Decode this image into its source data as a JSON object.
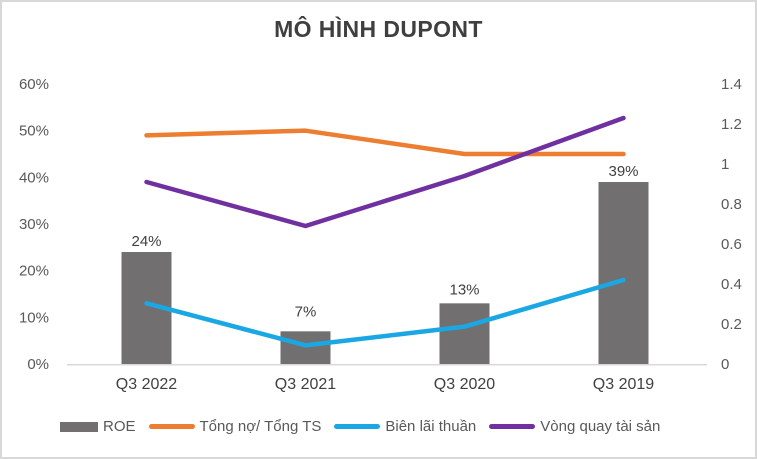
{
  "title": "MÔ HÌNH DUPONT",
  "chart_data": {
    "type": "combo",
    "title": "MÔ HÌNH DUPONT",
    "categories": [
      "Q3 2022",
      "Q3 2021",
      "Q3 2020",
      "Q3 2019"
    ],
    "series": [
      {
        "key": "roe",
        "name": "ROE",
        "type": "bar",
        "axis": "left",
        "color": "#716F6F",
        "values": [
          24,
          7,
          13,
          39
        ],
        "data_labels": [
          "24%",
          "7%",
          "13%",
          "39%"
        ]
      },
      {
        "key": "debt-ratio",
        "name": "Tổng nợ/ Tổng TS",
        "type": "line",
        "axis": "left",
        "color": "#ED7D31",
        "values": [
          49,
          50,
          45,
          45
        ]
      },
      {
        "key": "net-margin",
        "name": "Biên lãi thuần",
        "type": "line",
        "axis": "left",
        "color": "#1BA7E3",
        "values": [
          13,
          4,
          8,
          18
        ]
      },
      {
        "key": "asset-turnover",
        "name": "Vòng quay tài sản",
        "type": "line",
        "axis": "right",
        "color": "#7030A0",
        "values": [
          0.91,
          0.69,
          0.94,
          1.23
        ]
      }
    ],
    "left_axis": {
      "min": 0,
      "max": 60,
      "unit": "%",
      "ticks": [
        "0%",
        "10%",
        "20%",
        "30%",
        "40%",
        "50%",
        "60%"
      ]
    },
    "right_axis": {
      "min": 0,
      "max": 1.4,
      "unit": "",
      "ticks": [
        "0",
        "0.2",
        "0.4",
        "0.6",
        "0.8",
        "1",
        "1.2",
        "1.4"
      ]
    },
    "legend_position": "bottom",
    "grid": false,
    "colors": {
      "axis_line": "#D9D9D9",
      "tick_label": "#595959",
      "category_label": "#404040",
      "data_label": "#404040",
      "title": "#3F3F3F"
    }
  }
}
